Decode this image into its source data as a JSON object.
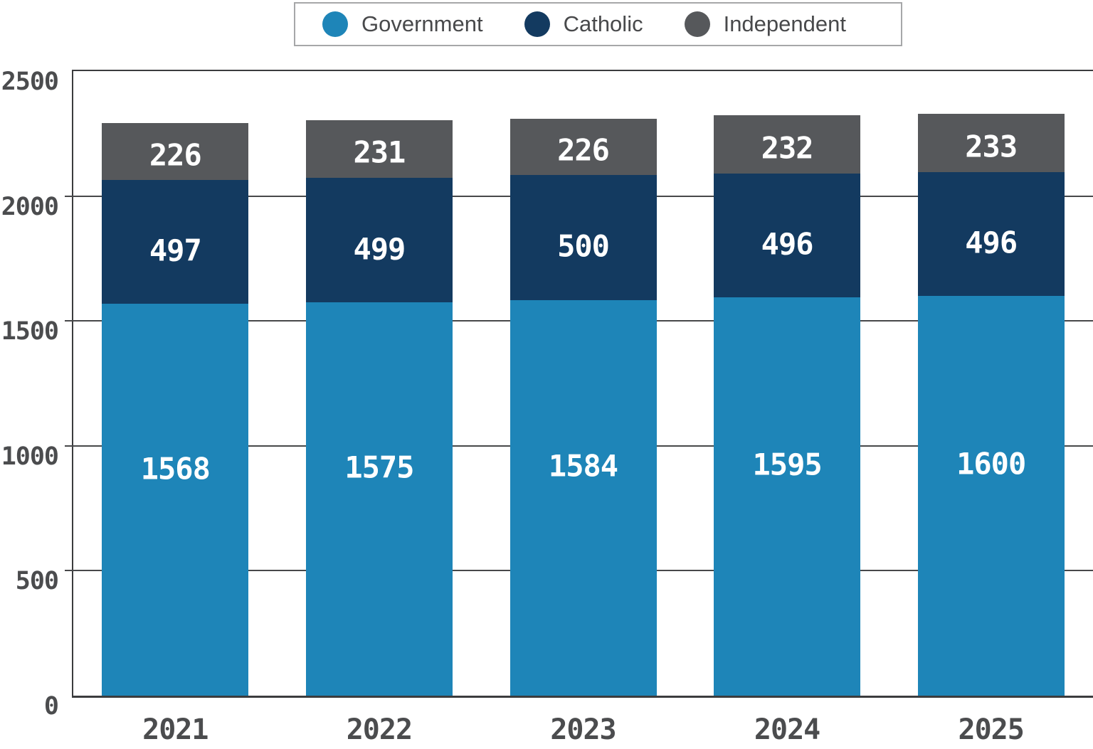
{
  "chart_data": {
    "type": "bar",
    "stacked": true,
    "categories": [
      "2021",
      "2022",
      "2023",
      "2024",
      "2025"
    ],
    "series": [
      {
        "name": "Government",
        "color": "#1e85b8",
        "values": [
          1568,
          1575,
          1584,
          1595,
          1600
        ]
      },
      {
        "name": "Catholic",
        "color": "#133a60",
        "values": [
          497,
          499,
          500,
          496,
          496
        ]
      },
      {
        "name": "Independent",
        "color": "#56585b",
        "values": [
          226,
          231,
          226,
          232,
          233
        ]
      }
    ],
    "ylim": [
      0,
      2500
    ],
    "ytick_interval": 500,
    "yticks": [
      "2500",
      "2000",
      "1500",
      "1000",
      "500",
      "0"
    ],
    "grid": "horizontal",
    "legend_position": "top",
    "bar_value_labels": true,
    "bar_label_color": "#ffffff"
  }
}
